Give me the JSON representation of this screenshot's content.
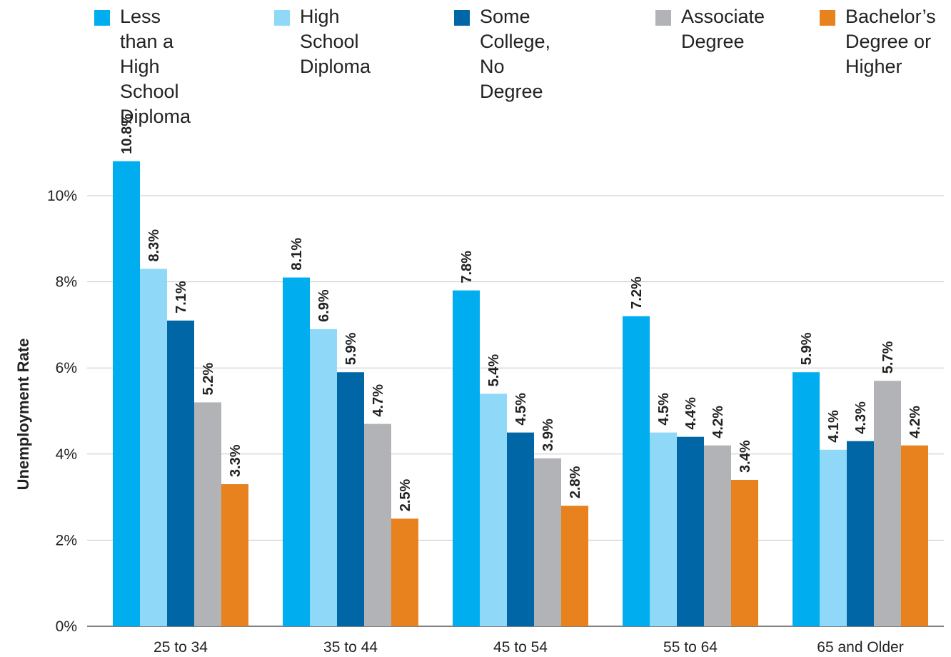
{
  "chart_data": {
    "type": "bar",
    "ylabel": "Unemployment Rate",
    "xlabel": "",
    "ylim": [
      0,
      10
    ],
    "yticks": [
      "0%",
      "2%",
      "4%",
      "6%",
      "8%",
      "10%"
    ],
    "grid": true,
    "legend_position": "top",
    "categories": [
      "25 to 34",
      "35 to 44",
      "45 to 54",
      "55 to 64",
      "65 and Older"
    ],
    "series": [
      {
        "name": "Less than a High School Diploma",
        "legend_lines": "Less than a\nHigh School\nDiploma",
        "color": "#00aeef",
        "values": [
          10.8,
          8.1,
          7.8,
          7.2,
          5.9
        ],
        "labels": [
          "10.8%",
          "8.1%",
          "7.8%",
          "7.2%",
          "5.9%"
        ]
      },
      {
        "name": "High School Diploma",
        "legend_lines": "High School\nDiploma",
        "color": "#8fd8f8",
        "values": [
          8.3,
          6.9,
          5.4,
          4.5,
          4.1
        ],
        "labels": [
          "8.3%",
          "6.9%",
          "5.4%",
          "4.5%",
          "4.1%"
        ]
      },
      {
        "name": "Some College, No Degree",
        "legend_lines": "Some College,\nNo Degree",
        "color": "#0066a6",
        "values": [
          7.1,
          5.9,
          4.5,
          4.4,
          4.3
        ],
        "labels": [
          "7.1%",
          "5.9%",
          "4.5%",
          "4.4%",
          "4.3%"
        ]
      },
      {
        "name": "Associate Degree",
        "legend_lines": "Associate\nDegree",
        "color": "#b1b3b6",
        "values": [
          5.2,
          4.7,
          3.9,
          4.2,
          5.7
        ],
        "labels": [
          "5.2%",
          "4.7%",
          "3.9%",
          "4.2%",
          "5.7%"
        ]
      },
      {
        "name": "Bachelor's Degree or Higher",
        "legend_lines": "Bachelor’s\nDegree or\nHigher",
        "color": "#e8821e",
        "values": [
          3.3,
          2.5,
          2.8,
          3.4,
          4.2
        ],
        "labels": [
          "3.3%",
          "2.5%",
          "2.8%",
          "3.4%",
          "4.2%"
        ]
      }
    ]
  }
}
